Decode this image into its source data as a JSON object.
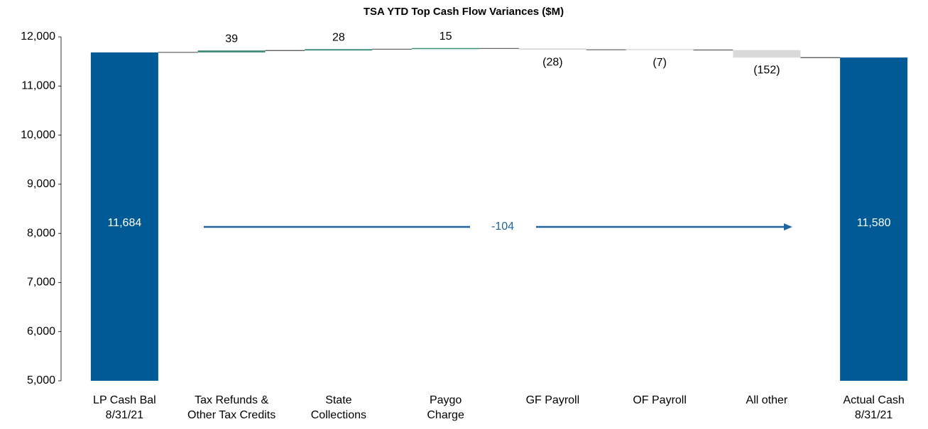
{
  "chart_data": {
    "type": "waterfall",
    "title": "TSA YTD Top Cash Flow Variances ($M)",
    "categories": [
      [
        "LP Cash Bal",
        "8/31/21"
      ],
      [
        "Tax Refunds &",
        "Other Tax Credits"
      ],
      [
        "State",
        "Collections"
      ],
      [
        "Paygo",
        "Charge"
      ],
      [
        "GF Payroll"
      ],
      [
        "OF Payroll"
      ],
      [
        "All other"
      ],
      [
        "Actual Cash",
        "8/31/21"
      ]
    ],
    "measures": [
      "absolute",
      "relative",
      "relative",
      "relative",
      "relative",
      "relative",
      "relative",
      "total"
    ],
    "values": [
      11684,
      39,
      28,
      15,
      -28,
      -7,
      -152,
      11580
    ],
    "value_labels": [
      "11,684",
      "39",
      "28",
      "15",
      "(28)",
      "(7)",
      "(152)",
      "11,580"
    ],
    "total_color": "#005a96",
    "increase_color": "#3c8a78",
    "decrease_color": "#d9d9d9",
    "ylim": [
      5000,
      12000
    ],
    "yticks": [
      {
        "value": 5000,
        "label": "5,000"
      },
      {
        "value": 6000,
        "label": "6,000"
      },
      {
        "value": 7000,
        "label": "7,000"
      },
      {
        "value": 8000,
        "label": "8,000"
      },
      {
        "value": 9000,
        "label": "9,000"
      },
      {
        "value": 10000,
        "label": "10,000"
      },
      {
        "value": 11000,
        "label": "11,000"
      },
      {
        "value": 12000,
        "label": "12,000"
      }
    ],
    "annotation": {
      "value": -104,
      "color": "#1f64a0"
    }
  }
}
